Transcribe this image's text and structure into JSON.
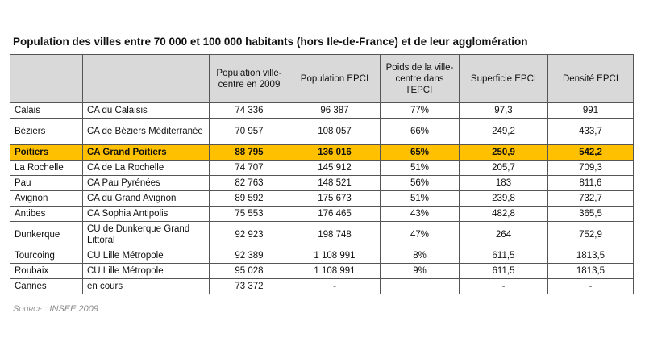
{
  "title": "Population des villes entre 70 000 et 100 000 habitants (hors Ile-de-France) et de leur agglomération",
  "columns": [
    "",
    "",
    "Population ville-centre en 2009",
    "Population EPCI",
    "Poids de la ville-centre dans l'EPCI",
    "Superficie EPCI",
    "Densité EPCI"
  ],
  "rows": [
    [
      "Calais",
      "CA du Calaisis",
      "74 336",
      "96 387",
      "77%",
      "97,3",
      "991"
    ],
    [
      "Béziers",
      "CA de Béziers Méditerranée",
      "70 957",
      "108 057",
      "66%",
      "249,2",
      "433,7"
    ],
    [
      "Poitiers",
      "CA Grand Poitiers",
      "88 795",
      "136 016",
      "65%",
      "250,9",
      "542,2"
    ],
    [
      "La Rochelle",
      "CA de La Rochelle",
      "74 707",
      "145 912",
      "51%",
      "205,7",
      "709,3"
    ],
    [
      "Pau",
      "CA Pau Pyrénées",
      "82 763",
      "148 521",
      "56%",
      "183",
      "811,6"
    ],
    [
      "Avignon",
      "CA du Grand Avignon",
      "89 592",
      "175 673",
      "51%",
      "239,8",
      "732,7"
    ],
    [
      "Antibes",
      "CA Sophia Antipolis",
      "75 553",
      "176 465",
      "43%",
      "482,8",
      "365,5"
    ],
    [
      "Dunkerque",
      "CU de Dunkerque Grand Littoral",
      "92 923",
      "198 748",
      "47%",
      "264",
      "752,9"
    ],
    [
      "Tourcoing",
      "CU Lille Métropole",
      "92 389",
      "1 108 991",
      "8%",
      "611,5",
      "1813,5"
    ],
    [
      "Roubaix",
      "CU Lille Métropole",
      "95 028",
      "1 108 991",
      "9%",
      "611,5",
      "1813,5"
    ],
    [
      "Cannes",
      "en cours",
      "73 372",
      "-",
      "",
      "-",
      "-"
    ]
  ],
  "highlight_color": "#ffc000",
  "header_color": "#d9d9d9",
  "source": "Source : INSEE 2009"
}
